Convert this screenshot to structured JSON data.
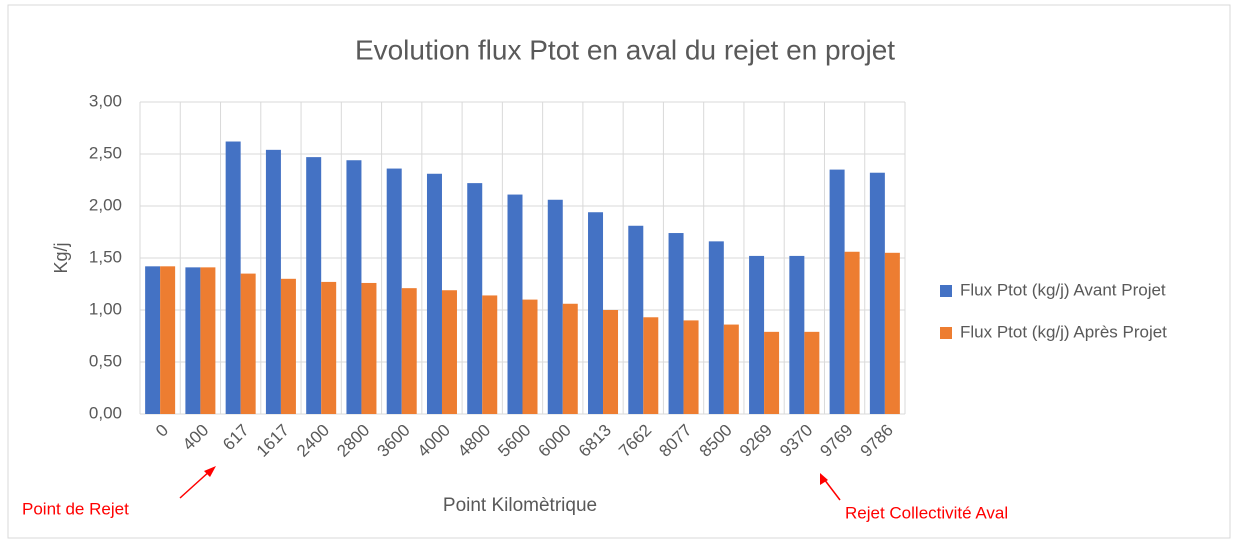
{
  "chart_data": {
    "type": "bar",
    "title": "Evolution flux Ptot en aval du rejet en projet",
    "y_label": "Kg/j",
    "x_label": "Point Kilomètrique",
    "categories": [
      "0",
      "400",
      "617",
      "1617",
      "2400",
      "2800",
      "3600",
      "4000",
      "4800",
      "5600",
      "6000",
      "6813",
      "7662",
      "8077",
      "8500",
      "9269",
      "9370",
      "9769",
      "9786"
    ],
    "series": [
      {
        "name": "Flux Ptot (kg/j) Avant Projet",
        "color": "#4472c4",
        "values": [
          1.42,
          1.41,
          2.62,
          2.54,
          2.47,
          2.44,
          2.36,
          2.31,
          2.22,
          2.11,
          2.06,
          1.94,
          1.81,
          1.74,
          1.66,
          1.52,
          1.52,
          2.35,
          2.32
        ]
      },
      {
        "name": "Flux Ptot (kg/j) Après Projet",
        "color": "#ed7d31",
        "values": [
          1.42,
          1.41,
          1.35,
          1.3,
          1.27,
          1.26,
          1.21,
          1.19,
          1.14,
          1.1,
          1.06,
          1.0,
          0.93,
          0.9,
          0.86,
          0.79,
          0.79,
          1.56,
          1.55
        ]
      }
    ],
    "ylim": [
      0,
      3
    ],
    "yticks": [
      {
        "value": 0,
        "label": "0,00"
      },
      {
        "value": 0.5,
        "label": "0,50"
      },
      {
        "value": 1,
        "label": "1,00"
      },
      {
        "value": 1.5,
        "label": "1,50"
      },
      {
        "value": 2,
        "label": "2,00"
      },
      {
        "value": 2.5,
        "label": "2,50"
      },
      {
        "value": 3,
        "label": "3,00"
      }
    ],
    "grid": true,
    "legend": "right",
    "annotations": [
      {
        "text": "Point de Rejet",
        "color": "#ff0000"
      },
      {
        "text": "Rejet Collectivité Aval",
        "color": "#ff0000"
      }
    ]
  }
}
